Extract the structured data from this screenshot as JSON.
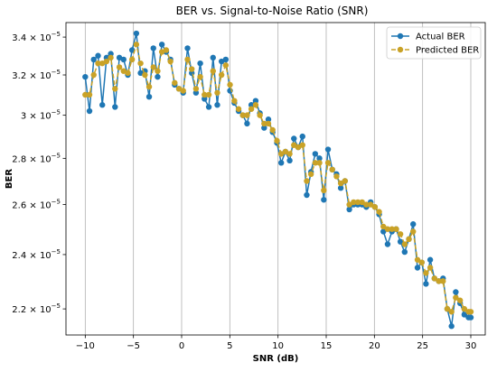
{
  "chart_data": {
    "type": "line",
    "title": "BER vs. Signal-to-Noise Ratio (SNR)",
    "xlabel": "SNR (dB)",
    "ylabel": "BER",
    "xlim": [
      -12,
      31.5
    ],
    "ylim": [
      2.11e-05,
      3.48e-05
    ],
    "x_ticks": [
      -10,
      -5,
      0,
      5,
      10,
      15,
      20,
      25,
      30
    ],
    "x_tick_labels": [
      "−10",
      "−5",
      "0",
      "5",
      "10",
      "15",
      "20",
      "25",
      "30"
    ],
    "y_ticks": [
      2.2e-05,
      2.4e-05,
      2.6e-05,
      2.8e-05,
      3e-05,
      3.2e-05,
      3.4e-05
    ],
    "y_tick_labels": [
      {
        "mantissa": "2.2",
        "exponent": "−5"
      },
      {
        "mantissa": "2.4",
        "exponent": "−5"
      },
      {
        "mantissa": "2.6",
        "exponent": "−5"
      },
      {
        "mantissa": "2.8",
        "exponent": "−5"
      },
      {
        "mantissa": "3",
        "exponent": "−5"
      },
      {
        "mantissa": "3.2",
        "exponent": "−5"
      },
      {
        "mantissa": "3.4",
        "exponent": "−5"
      }
    ],
    "y_scale": "log",
    "grid": "x-only",
    "legend_position": "top-right",
    "x": [
      -10.0,
      -9.56,
      -9.12,
      -8.67,
      -8.23,
      -7.79,
      -7.35,
      -6.91,
      -6.46,
      -6.02,
      -5.58,
      -5.14,
      -4.7,
      -4.26,
      -3.81,
      -3.37,
      -2.93,
      -2.49,
      -2.05,
      -1.6,
      -1.16,
      -0.72,
      -0.28,
      0.16,
      0.61,
      1.05,
      1.49,
      1.93,
      2.37,
      2.82,
      3.26,
      3.7,
      4.14,
      4.58,
      5.02,
      5.47,
      5.91,
      6.35,
      6.79,
      7.23,
      7.68,
      8.12,
      8.56,
      9.0,
      9.44,
      9.89,
      10.33,
      10.77,
      11.21,
      11.65,
      12.09,
      12.54,
      12.98,
      13.42,
      13.86,
      14.3,
      14.75,
      15.19,
      15.63,
      16.07,
      16.51,
      16.95,
      17.4,
      17.84,
      18.28,
      18.72,
      19.16,
      19.61,
      20.05,
      20.49,
      20.93,
      21.37,
      21.82,
      22.26,
      22.7,
      23.14,
      23.58,
      24.02,
      24.47,
      24.91,
      25.35,
      25.79,
      26.23,
      26.68,
      27.12,
      27.56,
      28.0,
      28.44,
      28.89,
      29.33,
      29.77,
      30.0
    ],
    "series": [
      {
        "name": "Actual BER",
        "color": "#1f77b4",
        "linestyle": "solid",
        "values": [
          3.19e-05,
          3.02e-05,
          3.28e-05,
          3.3e-05,
          3.05e-05,
          3.29e-05,
          3.31e-05,
          3.04e-05,
          3.29e-05,
          3.28e-05,
          3.2e-05,
          3.33e-05,
          3.42e-05,
          3.21e-05,
          3.22e-05,
          3.09e-05,
          3.34e-05,
          3.19e-05,
          3.36e-05,
          3.32e-05,
          3.28e-05,
          3.15e-05,
          3.13e-05,
          3.11e-05,
          3.34e-05,
          3.21e-05,
          3.11e-05,
          3.26e-05,
          3.08e-05,
          3.04e-05,
          3.29e-05,
          3.05e-05,
          3.27e-05,
          3.28e-05,
          3.12e-05,
          3.06e-05,
          3.02e-05,
          3e-05,
          2.96e-05,
          3.05e-05,
          3.07e-05,
          3.01e-05,
          2.94e-05,
          2.98e-05,
          2.92e-05,
          2.87e-05,
          2.78e-05,
          2.83e-05,
          2.79e-05,
          2.89e-05,
          2.85e-05,
          2.9e-05,
          2.64e-05,
          2.74e-05,
          2.82e-05,
          2.8e-05,
          2.62e-05,
          2.84e-05,
          2.75e-05,
          2.73e-05,
          2.67e-05,
          2.7e-05,
          2.58e-05,
          2.6e-05,
          2.6e-05,
          2.6e-05,
          2.59e-05,
          2.61e-05,
          2.59e-05,
          2.56e-05,
          2.49e-05,
          2.44e-05,
          2.49e-05,
          2.5e-05,
          2.45e-05,
          2.41e-05,
          2.46e-05,
          2.52e-05,
          2.35e-05,
          2.37e-05,
          2.29e-05,
          2.38e-05,
          2.31e-05,
          2.3e-05,
          2.31e-05,
          2.2e-05,
          2.14e-05,
          2.26e-05,
          2.22e-05,
          2.18e-05,
          2.17e-05,
          2.17e-05
        ]
      },
      {
        "name": "Predicted BER",
        "color": "#c9a227",
        "linestyle": "dashed",
        "values": [
          3.1e-05,
          3.1e-05,
          3.2e-05,
          3.26e-05,
          3.26e-05,
          3.27e-05,
          3.29e-05,
          3.13e-05,
          3.24e-05,
          3.22e-05,
          3.21e-05,
          3.28e-05,
          3.36e-05,
          3.26e-05,
          3.2e-05,
          3.14e-05,
          3.24e-05,
          3.22e-05,
          3.32e-05,
          3.33e-05,
          3.27e-05,
          3.16e-05,
          3.13e-05,
          3.12e-05,
          3.28e-05,
          3.23e-05,
          3.13e-05,
          3.19e-05,
          3.1e-05,
          3.1e-05,
          3.22e-05,
          3.11e-05,
          3.2e-05,
          3.25e-05,
          3.15e-05,
          3.07e-05,
          3.03e-05,
          3e-05,
          3e-05,
          3.03e-05,
          3.05e-05,
          3e-05,
          2.96e-05,
          2.96e-05,
          2.93e-05,
          2.88e-05,
          2.82e-05,
          2.83e-05,
          2.82e-05,
          2.86e-05,
          2.85e-05,
          2.86e-05,
          2.7e-05,
          2.73e-05,
          2.78e-05,
          2.78e-05,
          2.66e-05,
          2.78e-05,
          2.75e-05,
          2.72e-05,
          2.69e-05,
          2.7e-05,
          2.6e-05,
          2.61e-05,
          2.61e-05,
          2.61e-05,
          2.6e-05,
          2.6e-05,
          2.59e-05,
          2.57e-05,
          2.51e-05,
          2.5e-05,
          2.5e-05,
          2.5e-05,
          2.48e-05,
          2.44e-05,
          2.46e-05,
          2.49e-05,
          2.38e-05,
          2.37e-05,
          2.33e-05,
          2.35e-05,
          2.31e-05,
          2.3e-05,
          2.3e-05,
          2.2e-05,
          2.19e-05,
          2.24e-05,
          2.23e-05,
          2.2e-05,
          2.19e-05,
          2.19e-05
        ]
      }
    ]
  }
}
